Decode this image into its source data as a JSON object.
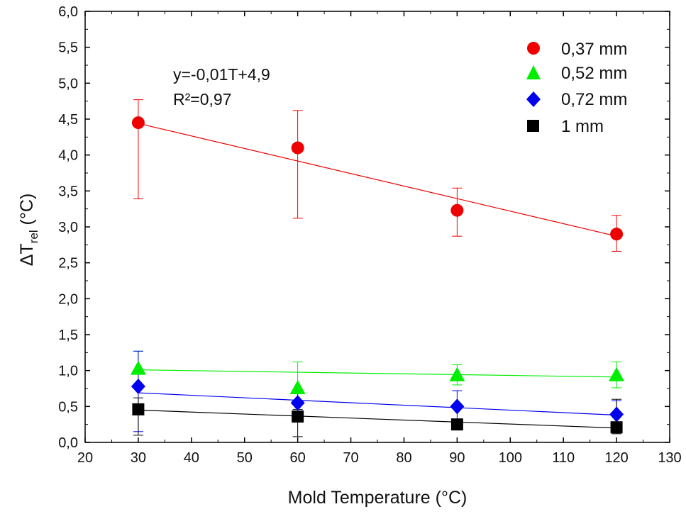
{
  "chart_data": {
    "type": "scatter",
    "xlabel": "Mold Temperature (°C)",
    "ylabel": {
      "main": "ΔT",
      "sub": "rel",
      "unit": "(°C)"
    },
    "xlim": [
      20,
      130
    ],
    "ylim": [
      0,
      6
    ],
    "xticks": [
      20,
      30,
      40,
      50,
      60,
      70,
      80,
      90,
      100,
      110,
      120,
      130
    ],
    "yticks": [
      0,
      0.5,
      1,
      1.5,
      2,
      2.5,
      3,
      3.5,
      4,
      4.5,
      5,
      5.5,
      6
    ],
    "decimal_separator": ",",
    "grid": false,
    "legend_position": "top-right",
    "annotation": [
      "y=-0,01T+4,9",
      "R²=0,97"
    ],
    "series": [
      {
        "name": "0,37 mm",
        "color": "#ee0000",
        "marker": "circle",
        "x": [
          30,
          60,
          90,
          120
        ],
        "y": [
          4.45,
          4.1,
          3.23,
          2.9
        ],
        "err_low": [
          3.39,
          3.12,
          2.87,
          2.66
        ],
        "err_high": [
          4.77,
          4.62,
          3.54,
          3.16
        ],
        "fit": {
          "x": [
            30,
            120
          ],
          "y": [
            4.44,
            2.87
          ]
        }
      },
      {
        "name": "0,52 mm",
        "color": "#00ee00",
        "marker": "triangle",
        "x": [
          30,
          60,
          90,
          120
        ],
        "y": [
          1.03,
          0.76,
          0.94,
          0.94
        ],
        "err_low": [
          0.8,
          0.4,
          0.8,
          0.76
        ],
        "err_high": [
          1.27,
          1.12,
          1.08,
          1.12
        ],
        "fit": {
          "x": [
            30,
            120
          ],
          "y": [
            1.01,
            0.91
          ]
        }
      },
      {
        "name": "0,72 mm",
        "color": "#0000ee",
        "marker": "diamond",
        "x": [
          30,
          60,
          90,
          120
        ],
        "y": [
          0.78,
          0.55,
          0.5,
          0.39
        ],
        "err_low": [
          0.15,
          0.38,
          0.28,
          0.18
        ],
        "err_high": [
          1.27,
          0.7,
          0.72,
          0.58
        ],
        "fit": {
          "x": [
            30,
            120
          ],
          "y": [
            0.69,
            0.38
          ]
        }
      },
      {
        "name": "1 mm",
        "color": "#000000",
        "marker": "square",
        "x": [
          30,
          60,
          90,
          120
        ],
        "y": [
          0.46,
          0.36,
          0.25,
          0.21
        ],
        "err_low": [
          0.1,
          0.08,
          0.18,
          0.12
        ],
        "err_high": [
          0.62,
          0.46,
          0.31,
          0.6
        ],
        "fit": {
          "x": [
            30,
            120
          ],
          "y": [
            0.45,
            0.2
          ]
        }
      }
    ]
  }
}
